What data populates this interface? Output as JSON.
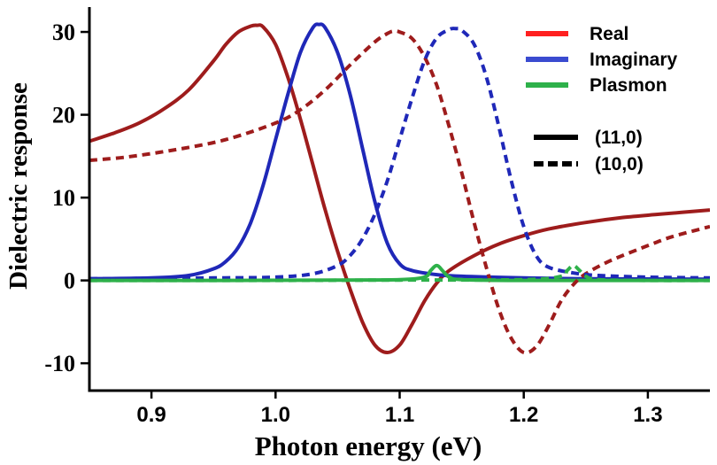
{
  "chart_data": {
    "type": "line",
    "xlabel": "Photon energy (eV)",
    "ylabel": "Dielectric response",
    "xlim": [
      0.85,
      1.35
    ],
    "ylim": [
      -13.3,
      33.0
    ],
    "xticks": [
      0.9,
      1.0,
      1.1,
      1.2,
      1.3
    ],
    "xtick_labels": [
      "0.9",
      "1.0",
      "1.1",
      "1.2",
      "1.3"
    ],
    "yticks": [
      -10,
      0,
      10,
      20,
      30
    ],
    "ytick_labels": [
      "-10",
      "0",
      "10",
      "20",
      "30"
    ],
    "grid": false,
    "legend_placement": "top-right",
    "legend": {
      "colors": [
        {
          "label": "Real",
          "color": "#ff2020"
        },
        {
          "label": "Imaginary",
          "color": "#3a4bd0"
        },
        {
          "label": "Plasmon",
          "color": "#2eb14a"
        }
      ],
      "styles": [
        {
          "label": "(11,0)",
          "dash": "solid"
        },
        {
          "label": "(10,0)",
          "dash": "dashed"
        }
      ]
    },
    "series": [
      {
        "name": "Real (11,0)",
        "component": "Real",
        "tube": "(11,0)",
        "color": "#9e1c1c",
        "dash": "solid",
        "x": [
          0.85,
          0.87,
          0.89,
          0.91,
          0.93,
          0.95,
          0.96,
          0.97,
          0.98,
          0.985,
          0.99,
          1.0,
          1.01,
          1.02,
          1.03,
          1.04,
          1.05,
          1.06,
          1.07,
          1.08,
          1.09,
          1.1,
          1.11,
          1.12,
          1.13,
          1.14,
          1.16,
          1.18,
          1.2,
          1.22,
          1.25,
          1.28,
          1.31,
          1.35
        ],
        "y": [
          16.8,
          17.8,
          19.0,
          20.7,
          23.0,
          26.5,
          28.5,
          30.0,
          30.7,
          30.8,
          30.6,
          28.5,
          24.5,
          19.5,
          14.0,
          8.5,
          3.5,
          -1.0,
          -5.0,
          -7.8,
          -8.7,
          -7.8,
          -5.3,
          -2.5,
          -0.3,
          1.2,
          3.0,
          4.4,
          5.4,
          6.2,
          7.0,
          7.6,
          8.0,
          8.5
        ]
      },
      {
        "name": "Imaginary (11,0)",
        "component": "Imaginary",
        "tube": "(11,0)",
        "color": "#1f28b8",
        "dash": "solid",
        "x": [
          0.85,
          0.9,
          0.93,
          0.95,
          0.96,
          0.97,
          0.98,
          0.99,
          1.0,
          1.01,
          1.02,
          1.03,
          1.035,
          1.04,
          1.05,
          1.06,
          1.07,
          1.08,
          1.09,
          1.1,
          1.11,
          1.13,
          1.15,
          1.2,
          1.25,
          1.35
        ],
        "y": [
          0.2,
          0.3,
          0.6,
          1.4,
          2.3,
          4.0,
          7.0,
          11.5,
          17.0,
          22.5,
          27.5,
          30.5,
          30.9,
          30.5,
          27.5,
          22.5,
          16.0,
          9.5,
          4.5,
          2.0,
          1.2,
          0.7,
          0.5,
          0.3,
          0.2,
          0.15
        ]
      },
      {
        "name": "Plasmon (11,0)",
        "component": "Plasmon",
        "tube": "(11,0)",
        "color": "#2eb14a",
        "dash": "solid",
        "x": [
          0.85,
          0.95,
          1.05,
          1.1,
          1.12,
          1.125,
          1.13,
          1.135,
          1.14,
          1.15,
          1.2,
          1.35
        ],
        "y": [
          0.0,
          0.0,
          0.05,
          0.1,
          0.4,
          1.2,
          1.8,
          1.1,
          0.4,
          0.1,
          0.0,
          0.0
        ]
      },
      {
        "name": "Real (10,0)",
        "component": "Real",
        "tube": "(10,0)",
        "color": "#9e1c1c",
        "dash": "dashed",
        "x": [
          0.85,
          0.88,
          0.92,
          0.96,
          1.0,
          1.02,
          1.04,
          1.06,
          1.08,
          1.09,
          1.095,
          1.1,
          1.11,
          1.12,
          1.13,
          1.14,
          1.15,
          1.16,
          1.17,
          1.18,
          1.19,
          1.2,
          1.21,
          1.22,
          1.23,
          1.24,
          1.25,
          1.27,
          1.3,
          1.32,
          1.35
        ],
        "y": [
          14.5,
          14.9,
          15.8,
          17.0,
          19.0,
          20.6,
          23.0,
          26.0,
          28.8,
          29.8,
          30.1,
          30.0,
          29.2,
          27.0,
          23.5,
          18.5,
          13.0,
          7.0,
          1.5,
          -3.5,
          -7.0,
          -8.7,
          -8.0,
          -5.5,
          -2.5,
          -0.5,
          0.8,
          2.4,
          4.2,
          5.3,
          6.5
        ]
      },
      {
        "name": "Imaginary (10,0)",
        "component": "Imaginary",
        "tube": "(10,0)",
        "color": "#1f28b8",
        "dash": "dashed",
        "x": [
          0.85,
          0.95,
          1.0,
          1.03,
          1.05,
          1.06,
          1.07,
          1.08,
          1.09,
          1.1,
          1.11,
          1.12,
          1.13,
          1.14,
          1.145,
          1.15,
          1.16,
          1.17,
          1.18,
          1.19,
          1.2,
          1.21,
          1.22,
          1.24,
          1.26,
          1.3,
          1.35
        ],
        "y": [
          0.2,
          0.3,
          0.4,
          0.8,
          1.8,
          3.0,
          5.0,
          8.0,
          12.0,
          17.0,
          22.0,
          26.5,
          29.3,
          30.3,
          30.4,
          30.2,
          28.5,
          24.5,
          18.5,
          12.0,
          6.5,
          3.0,
          1.6,
          0.9,
          0.6,
          0.4,
          0.3
        ]
      },
      {
        "name": "Plasmon (10,0)",
        "component": "Plasmon",
        "tube": "(10,0)",
        "color": "#2eb14a",
        "dash": "dashed",
        "x": [
          0.85,
          1.0,
          1.1,
          1.2,
          1.23,
          1.235,
          1.24,
          1.245,
          1.25,
          1.26,
          1.3,
          1.35
        ],
        "y": [
          0.0,
          0.0,
          0.05,
          0.1,
          0.5,
          1.2,
          1.8,
          1.2,
          0.5,
          0.1,
          0.0,
          0.0
        ]
      }
    ]
  }
}
